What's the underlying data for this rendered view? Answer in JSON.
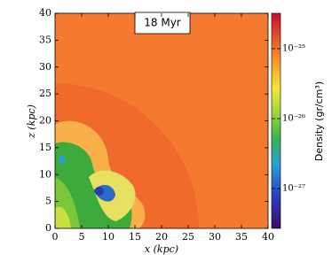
{
  "chart_data": {
    "type": "heatmap",
    "annotation": "18 Myr",
    "xlabel": "x (kpc)",
    "ylabel": "z (kpc)",
    "xlim": [
      0,
      40
    ],
    "ylim": [
      0,
      40
    ],
    "xticks": [
      0,
      5,
      10,
      15,
      20,
      25,
      30,
      35,
      40
    ],
    "yticks": [
      0,
      5,
      10,
      15,
      20,
      25,
      30,
      35,
      40
    ],
    "colorbar": {
      "label": "Density (gr/cm³)",
      "scale": "log",
      "lim": [
        2.7e-28,
        3.2e-25
      ],
      "ticks": [
        {
          "value": 1e-27,
          "label": "10⁻²⁷"
        },
        {
          "value": 1e-26,
          "label": "10⁻²⁶"
        },
        {
          "value": 1e-25,
          "label": "10⁻²⁵"
        }
      ]
    }
  }
}
